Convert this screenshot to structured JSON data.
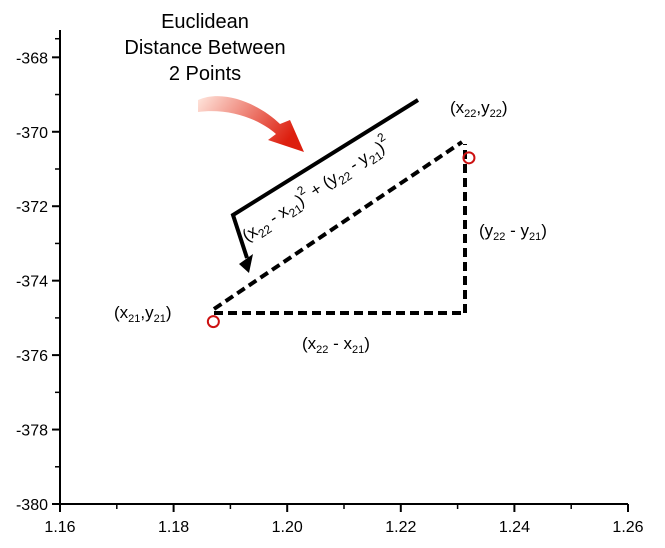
{
  "title_lines": [
    "Euclidean",
    "Distance Between",
    "2 Points"
  ],
  "formula": {
    "part1": "(x",
    "sub22a": "22",
    "minus1": " - x",
    "sub21a": "21",
    "close1": ")",
    "sup1": "2",
    "plus": " + (y",
    "sub22b": "22",
    "minus2": " - y",
    "sub21b": "21",
    "close2": ")",
    "sup2": "2"
  },
  "labels": {
    "p1": {
      "open": "(x",
      "s1": "21",
      "mid": ",y",
      "s2": "21",
      "close": ")"
    },
    "p2": {
      "open": "(x",
      "s1": "22",
      "mid": ",y",
      "s2": "22",
      "close": ")"
    },
    "dx": {
      "open": "(x",
      "s1": "22",
      "mid": " - x",
      "s2": "21",
      "close": ")"
    },
    "dy": {
      "open": "(y",
      "s1": "22",
      "mid": " - y",
      "s2": "21",
      "close": ")"
    }
  },
  "colors": {
    "axis": "#000000",
    "point": "#cc1111",
    "arrow_start": "#ffe6dd",
    "arrow_end": "#dd1f0f"
  },
  "chart_data": {
    "type": "scatter",
    "xlim": [
      1.16,
      1.26
    ],
    "ylim": [
      -380,
      -367.4
    ],
    "x_ticks": [
      "1.16",
      "1.18",
      "1.20",
      "1.22",
      "1.24",
      "1.26"
    ],
    "y_ticks": [
      "-368",
      "-370",
      "-372",
      "-374",
      "-376",
      "-378",
      "-380"
    ],
    "x_tick_values": [
      1.16,
      1.18,
      1.2,
      1.22,
      1.24,
      1.26
    ],
    "y_tick_values": [
      -368,
      -370,
      -372,
      -374,
      -376,
      -378,
      -380
    ],
    "points": [
      {
        "x": 1.187,
        "y": -375.1
      },
      {
        "x": 1.232,
        "y": -370.7
      }
    ]
  }
}
